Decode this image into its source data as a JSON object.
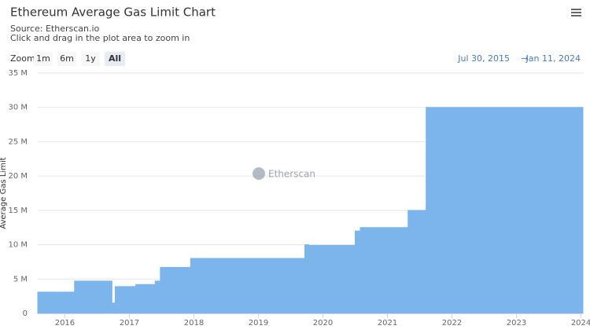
{
  "chart_data": {
    "type": "area",
    "title": "Ethereum Average Gas Limit Chart",
    "subtitle": "Source: Etherscan.io",
    "hint": "Click and drag in the plot area to zoom in",
    "zoom_label": "Zoom",
    "zoom_buttons": [
      "1m",
      "6m",
      "1y",
      "All"
    ],
    "range_from": "Jul 30, 2015",
    "range_arrow": "→",
    "range_to": "Jan 11, 2024",
    "y_label": "Average Gas Limit",
    "watermark": "Etherscan",
    "xlim": [
      2015.58,
      2024.03
    ],
    "xticks": [
      2016,
      2017,
      2018,
      2019,
      2020,
      2021,
      2022,
      2023,
      2024
    ],
    "ylim": [
      0,
      35
    ],
    "yticks": [
      {
        "value": 0,
        "label": "0"
      },
      {
        "value": 5,
        "label": "5 M"
      },
      {
        "value": 10,
        "label": "10 M"
      },
      {
        "value": 15,
        "label": "15 M"
      },
      {
        "value": 20,
        "label": "20 M"
      },
      {
        "value": 25,
        "label": "25 M"
      },
      {
        "value": 30,
        "label": "30 M"
      },
      {
        "value": 35,
        "label": "35 M"
      }
    ],
    "grid": true,
    "x": [
      2015.58,
      2016.15,
      2016.15,
      2016.73,
      2016.73,
      2016.78,
      2016.78,
      2017.1,
      2017.1,
      2017.4,
      2017.4,
      2017.48,
      2017.48,
      2017.95,
      2017.95,
      2019.72,
      2019.72,
      2019.78,
      2019.78,
      2020.5,
      2020.5,
      2020.58,
      2020.58,
      2021.32,
      2021.32,
      2021.6,
      2021.6,
      2024.03
    ],
    "series": [
      {
        "color": "#7cb5ec",
        "values": [
          3.1,
          3.1,
          4.7,
          4.7,
          1.5,
          1.5,
          3.9,
          3.9,
          4.2,
          4.2,
          4.7,
          4.7,
          6.7,
          6.7,
          8.0,
          8.0,
          10.0,
          10.0,
          9.9,
          9.9,
          12.0,
          12.0,
          12.5,
          12.5,
          15.0,
          15.0,
          30.0,
          30.0
        ]
      }
    ]
  }
}
